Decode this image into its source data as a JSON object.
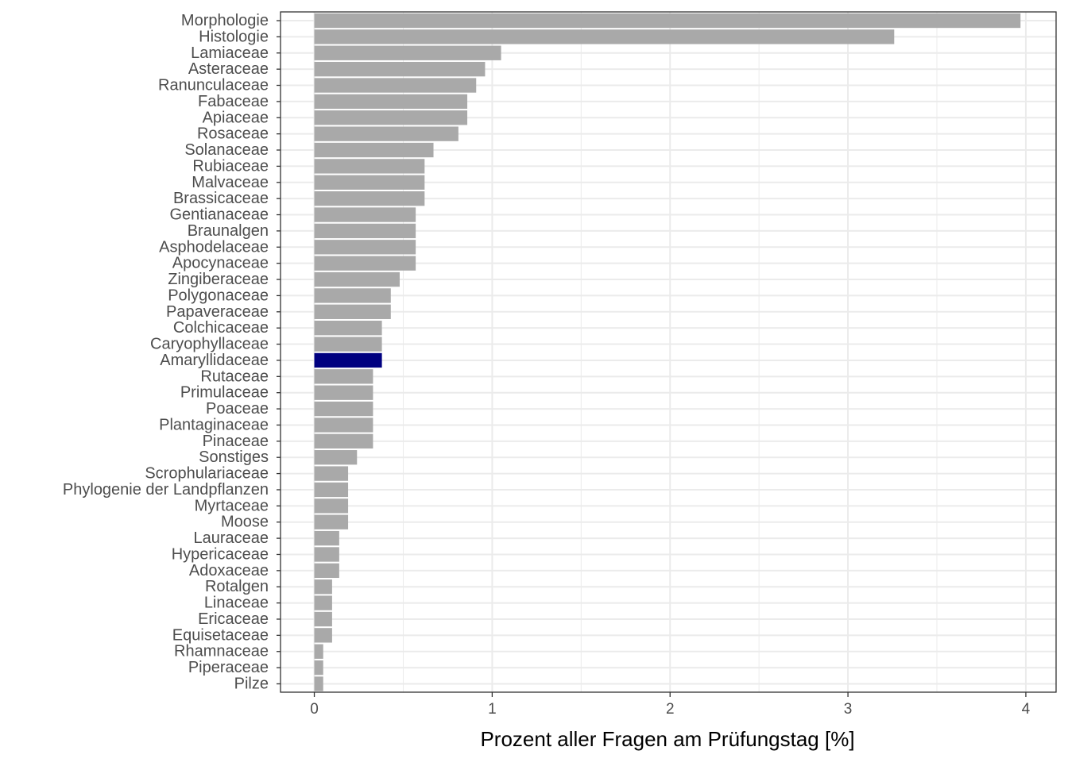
{
  "chart_data": {
    "type": "bar",
    "orientation": "horizontal",
    "categories": [
      "Morphologie",
      "Histologie",
      "Lamiaceae",
      "Asteraceae",
      "Ranunculaceae",
      "Fabaceae",
      "Apiaceae",
      "Rosaceae",
      "Solanaceae",
      "Rubiaceae",
      "Malvaceae",
      "Brassicaceae",
      "Gentianaceae",
      "Braunalgen",
      "Asphodelaceae",
      "Apocynaceae",
      "Zingiberaceae",
      "Polygonaceae",
      "Papaveraceae",
      "Colchicaceae",
      "Caryophyllaceae",
      "Amaryllidaceae",
      "Rutaceae",
      "Primulaceae",
      "Poaceae",
      "Plantaginaceae",
      "Pinaceae",
      "Sonstiges",
      "Scrophulariaceae",
      "Phylogenie der Landpflanzen",
      "Myrtaceae",
      "Moose",
      "Lauraceae",
      "Hypericaceae",
      "Adoxaceae",
      "Rotalgen",
      "Linaceae",
      "Ericaceae",
      "Equisetaceae",
      "Rhamnaceae",
      "Piperaceae",
      "Pilze"
    ],
    "values": [
      3.97,
      3.26,
      1.05,
      0.96,
      0.91,
      0.86,
      0.86,
      0.81,
      0.67,
      0.62,
      0.62,
      0.62,
      0.57,
      0.57,
      0.57,
      0.57,
      0.48,
      0.43,
      0.43,
      0.38,
      0.38,
      0.38,
      0.33,
      0.33,
      0.33,
      0.33,
      0.33,
      0.24,
      0.19,
      0.19,
      0.19,
      0.19,
      0.14,
      0.14,
      0.14,
      0.1,
      0.1,
      0.1,
      0.1,
      0.05,
      0.05,
      0.05
    ],
    "highlight": "Amaryllidaceae",
    "xlabel": "Prozent aller Fragen am Prüfungstag [%]",
    "ylabel": "",
    "xlim": [
      -0.19,
      4.17
    ],
    "xticks": [
      0,
      1,
      2,
      3,
      4
    ],
    "grid": true,
    "colors": {
      "bar": "#a9a9a9",
      "highlight": "#000080",
      "grid": "#ebebeb",
      "panel_border": "#333333"
    }
  }
}
